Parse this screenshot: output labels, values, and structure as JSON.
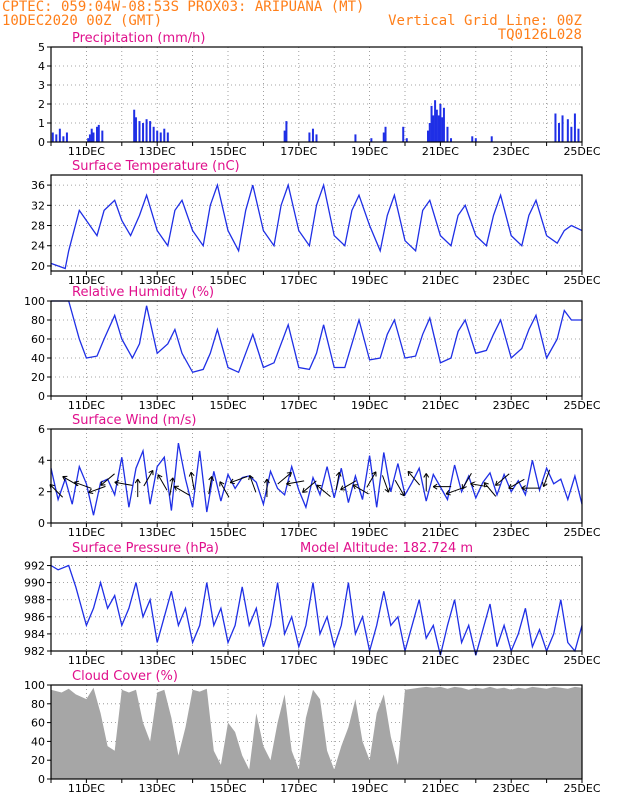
{
  "header": {
    "line1": "CPTEC:   059:04W-08:53S   PROX03: ARIPUANA (MT)",
    "line2": "10DEC2020 00Z (GMT)",
    "right1": "Vertical Grid Line: 00Z",
    "right2": "TQ0126L028"
  },
  "colors": {
    "header": "#ff7f1a",
    "title": "#e0108c",
    "line": "#1f2fe6",
    "bars": "#1f2fe6",
    "cloud": "#a6a6a6",
    "arrow": "#000000"
  },
  "chart_data": [
    {
      "type": "bar",
      "title": "Precipitation (mm/h)",
      "xlabel": "",
      "ylabel": "",
      "x_ticks": [
        "11DEC",
        "13DEC",
        "15DEC",
        "17DEC",
        "19DEC",
        "21DEC",
        "23DEC",
        "25DEC"
      ],
      "y_ticks": [
        "0",
        "1",
        "2",
        "3",
        "4",
        "5"
      ],
      "ylim": [
        0,
        5
      ],
      "x_range_days": [
        10,
        25
      ],
      "x": [
        10.05,
        10.15,
        10.25,
        10.35,
        10.45,
        11.05,
        11.1,
        11.15,
        11.2,
        11.3,
        11.35,
        11.45,
        12.35,
        12.4,
        12.5,
        12.6,
        12.7,
        12.8,
        12.9,
        13.0,
        13.1,
        13.2,
        13.3,
        16.6,
        16.65,
        17.3,
        17.4,
        17.5,
        18.6,
        19.05,
        19.4,
        19.45,
        19.95,
        20.05,
        20.65,
        20.7,
        20.75,
        20.8,
        20.85,
        20.9,
        20.95,
        21.0,
        21.05,
        21.1,
        21.2,
        21.3,
        21.9,
        22.0,
        22.45,
        24.25,
        24.35,
        24.45,
        24.6,
        24.7,
        24.8,
        24.9
      ],
      "values": [
        0.5,
        0.4,
        0.7,
        0.3,
        0.5,
        0.2,
        0.4,
        0.7,
        0.5,
        0.8,
        0.9,
        0.6,
        1.7,
        1.3,
        1.1,
        1.0,
        1.2,
        1.1,
        0.8,
        0.6,
        0.5,
        0.7,
        0.5,
        0.6,
        1.1,
        0.5,
        0.7,
        0.4,
        0.4,
        0.2,
        0.5,
        0.8,
        0.8,
        0.2,
        0.6,
        1.0,
        1.9,
        1.4,
        2.2,
        1.7,
        1.4,
        2.0,
        1.3,
        1.8,
        0.8,
        0.2,
        0.3,
        0.2,
        0.3,
        1.5,
        1.0,
        1.4,
        1.2,
        0.8,
        1.5,
        0.7
      ]
    },
    {
      "type": "line",
      "title": "Surface Temperature (nC)",
      "xlabel": "",
      "ylabel": "",
      "x_ticks": [
        "11DEC",
        "13DEC",
        "15DEC",
        "17DEC",
        "19DEC",
        "21DEC",
        "23DEC",
        "25DEC"
      ],
      "y_ticks": [
        "20",
        "24",
        "28",
        "32",
        "36"
      ],
      "ylim": [
        19,
        38
      ],
      "x_range_days": [
        10,
        25
      ],
      "x": [
        10.0,
        10.4,
        10.5,
        10.8,
        11.0,
        11.3,
        11.5,
        11.8,
        12.0,
        12.25,
        12.5,
        12.7,
        13.0,
        13.3,
        13.5,
        13.7,
        14.0,
        14.3,
        14.5,
        14.7,
        15.0,
        15.3,
        15.5,
        15.7,
        16.0,
        16.3,
        16.5,
        16.7,
        17.0,
        17.3,
        17.5,
        17.7,
        18.0,
        18.3,
        18.5,
        18.7,
        19.0,
        19.3,
        19.5,
        19.7,
        20.0,
        20.3,
        20.5,
        20.7,
        21.0,
        21.3,
        21.5,
        21.7,
        22.0,
        22.3,
        22.5,
        22.7,
        23.0,
        23.3,
        23.5,
        23.7,
        24.0,
        24.3,
        24.5,
        24.7,
        25.0
      ],
      "values": [
        20.5,
        19.5,
        23,
        31,
        29,
        26,
        31,
        33,
        29,
        26,
        30,
        34,
        27,
        24,
        31,
        33,
        27,
        24,
        32,
        36,
        27,
        23,
        31,
        36,
        27,
        24,
        32,
        36,
        27,
        24,
        32,
        36,
        26,
        24,
        31,
        34,
        28,
        23,
        30,
        34,
        25,
        23,
        31,
        33,
        26,
        24,
        30,
        32,
        26,
        24,
        30,
        34,
        26,
        24,
        30,
        33,
        26,
        24.5,
        27,
        28,
        27
      ]
    },
    {
      "type": "line",
      "title": "Relative Humidity (%)",
      "xlabel": "",
      "ylabel": "",
      "x_ticks": [
        "11DEC",
        "13DEC",
        "15DEC",
        "17DEC",
        "19DEC",
        "21DEC",
        "23DEC",
        "25DEC"
      ],
      "y_ticks": [
        "0",
        "20",
        "40",
        "60",
        "80",
        "100"
      ],
      "ylim": [
        0,
        100
      ],
      "x_range_days": [
        10,
        25
      ],
      "x": [
        10.0,
        10.5,
        10.8,
        11.0,
        11.3,
        11.5,
        11.8,
        12.0,
        12.3,
        12.5,
        12.7,
        13.0,
        13.3,
        13.5,
        13.7,
        14.0,
        14.3,
        14.5,
        14.7,
        15.0,
        15.3,
        15.5,
        15.7,
        16.0,
        16.3,
        16.5,
        16.7,
        17.0,
        17.3,
        17.5,
        17.7,
        18.0,
        18.3,
        18.5,
        18.7,
        19.0,
        19.3,
        19.5,
        19.7,
        20.0,
        20.3,
        20.5,
        20.7,
        21.0,
        21.3,
        21.5,
        21.7,
        22.0,
        22.3,
        22.5,
        22.7,
        23.0,
        23.3,
        23.5,
        23.7,
        24.0,
        24.3,
        24.5,
        24.7,
        25.0
      ],
      "values": [
        100,
        100,
        60,
        40,
        42,
        60,
        85,
        60,
        40,
        55,
        95,
        45,
        55,
        70,
        45,
        25,
        28,
        45,
        70,
        30,
        25,
        45,
        65,
        30,
        35,
        55,
        75,
        30,
        28,
        45,
        75,
        30,
        30,
        55,
        80,
        38,
        40,
        65,
        80,
        40,
        42,
        65,
        82,
        35,
        40,
        68,
        80,
        45,
        48,
        65,
        80,
        40,
        50,
        70,
        85,
        40,
        60,
        90,
        80,
        80
      ]
    },
    {
      "type": "line",
      "title": "Surface Wind (m/s)",
      "xlabel": "",
      "ylabel": "",
      "x_ticks": [
        "11DEC",
        "13DEC",
        "15DEC",
        "17DEC",
        "19DEC",
        "21DEC",
        "23DEC",
        "25DEC"
      ],
      "y_ticks": [
        "0",
        "2",
        "4",
        "6"
      ],
      "ylim": [
        0,
        6
      ],
      "x_range_days": [
        10,
        25
      ],
      "x": [
        10.0,
        10.2,
        10.4,
        10.6,
        10.8,
        11.0,
        11.2,
        11.4,
        11.6,
        11.8,
        12.0,
        12.2,
        12.4,
        12.6,
        12.8,
        13.0,
        13.2,
        13.4,
        13.6,
        13.8,
        14.0,
        14.2,
        14.4,
        14.6,
        14.8,
        15.0,
        15.2,
        15.4,
        15.6,
        15.8,
        16.0,
        16.2,
        16.4,
        16.6,
        16.8,
        17.0,
        17.2,
        17.4,
        17.6,
        17.8,
        18.0,
        18.2,
        18.4,
        18.6,
        18.8,
        19.0,
        19.2,
        19.4,
        19.6,
        19.8,
        20.0,
        20.2,
        20.4,
        20.6,
        20.8,
        21.0,
        21.2,
        21.4,
        21.6,
        21.8,
        22.0,
        22.2,
        22.4,
        22.6,
        22.8,
        23.0,
        23.2,
        23.4,
        23.6,
        23.8,
        24.0,
        24.2,
        24.4,
        24.6,
        24.8,
        25.0
      ],
      "values": [
        3.5,
        1.5,
        2.8,
        1.2,
        3.6,
        2.5,
        0.5,
        2.6,
        2.8,
        1.8,
        4.2,
        1.0,
        3.5,
        4.6,
        1.2,
        3.6,
        4.2,
        0.8,
        5.1,
        2.8,
        1.0,
        4.6,
        0.7,
        3.3,
        1.4,
        3.1,
        2.2,
        2.9,
        3.0,
        2.6,
        1.2,
        3.3,
        2.2,
        1.8,
        3.6,
        2.1,
        1.0,
        2.9,
        1.8,
        3.6,
        1.6,
        3.5,
        1.3,
        3.0,
        1.5,
        4.3,
        1.0,
        4.5,
        2.0,
        3.8,
        1.8,
        2.6,
        3.5,
        1.4,
        3.1,
        2.3,
        1.5,
        3.7,
        2.0,
        3.0,
        1.6,
        2.6,
        3.2,
        1.8,
        3.1,
        2.0,
        2.7,
        1.8,
        4.0,
        2.1,
        3.5,
        2.5,
        2.8,
        1.5,
        3.0,
        1.2
      ],
      "arrows_days": [
        10.15,
        10.55,
        10.9,
        11.3,
        11.6,
        12.05,
        12.45,
        12.75,
        13.15,
        13.4,
        13.7,
        14.0,
        14.5,
        14.9,
        15.3,
        15.7,
        16.1,
        16.6,
        16.9,
        17.3,
        17.7,
        18.1,
        18.4,
        18.75,
        19.05,
        19.45,
        19.85,
        20.25,
        20.6,
        21.05,
        21.4,
        21.75,
        22.1,
        22.4,
        22.75,
        23.15,
        23.55,
        24.0
      ],
      "arrow_angles_deg": [
        135,
        150,
        160,
        200,
        220,
        170,
        90,
        60,
        120,
        80,
        150,
        100,
        80,
        120,
        200,
        110,
        90,
        40,
        190,
        220,
        140,
        80,
        210,
        150,
        60,
        290,
        300,
        130,
        90,
        180,
        200,
        240,
        170,
        130,
        220,
        210,
        180,
        250
      ]
    },
    {
      "type": "line",
      "title": "Surface Pressure (hPa)",
      "subtitle": "Model Altitude: 182.724 m",
      "xlabel": "",
      "ylabel": "",
      "x_ticks": [
        "11DEC",
        "13DEC",
        "15DEC",
        "17DEC",
        "19DEC",
        "21DEC",
        "23DEC",
        "25DEC"
      ],
      "y_ticks": [
        "982",
        "984",
        "986",
        "988",
        "990",
        "992"
      ],
      "ylim": [
        982,
        993
      ],
      "x_range_days": [
        10,
        25
      ],
      "x": [
        10.0,
        10.2,
        10.5,
        10.7,
        11.0,
        11.2,
        11.4,
        11.6,
        11.8,
        12.0,
        12.2,
        12.4,
        12.6,
        12.8,
        13.0,
        13.2,
        13.4,
        13.6,
        13.8,
        14.0,
        14.2,
        14.4,
        14.6,
        14.8,
        15.0,
        15.2,
        15.4,
        15.6,
        15.8,
        16.0,
        16.2,
        16.4,
        16.6,
        16.8,
        17.0,
        17.2,
        17.4,
        17.6,
        17.8,
        18.0,
        18.2,
        18.4,
        18.6,
        18.8,
        19.0,
        19.2,
        19.4,
        19.6,
        19.8,
        20.0,
        20.2,
        20.4,
        20.6,
        20.8,
        21.0,
        21.2,
        21.4,
        21.6,
        21.8,
        22.0,
        22.2,
        22.4,
        22.6,
        22.8,
        23.0,
        23.2,
        23.4,
        23.6,
        23.8,
        24.0,
        24.2,
        24.4,
        24.6,
        24.8,
        25.0
      ],
      "values": [
        992,
        991.5,
        992,
        989.5,
        985,
        987,
        990,
        987,
        988.5,
        985,
        987,
        990,
        986,
        988,
        983,
        986,
        989,
        985,
        987,
        983,
        985,
        990,
        985,
        987,
        983,
        985,
        989.5,
        985,
        987,
        982.5,
        985,
        990,
        984,
        986,
        982.5,
        985,
        990,
        984,
        986,
        982.5,
        985,
        990,
        984,
        986,
        982,
        985,
        989,
        985,
        986,
        982,
        985,
        988,
        983.5,
        985,
        981.5,
        985,
        988,
        983,
        985,
        981.5,
        984.5,
        987.5,
        982.5,
        985,
        982,
        984,
        987,
        982.5,
        984.5,
        982,
        984,
        988,
        983,
        982,
        985
      ]
    },
    {
      "type": "area",
      "title": "Cloud Cover (%)",
      "xlabel": "",
      "ylabel": "",
      "x_ticks": [
        "11DEC",
        "13DEC",
        "15DEC",
        "17DEC",
        "19DEC",
        "21DEC",
        "23DEC",
        "25DEC"
      ],
      "y_ticks": [
        "0",
        "20",
        "40",
        "60",
        "80",
        "100"
      ],
      "ylim": [
        0,
        100
      ],
      "x_range_days": [
        10,
        25
      ],
      "x": [
        10.0,
        10.3,
        10.5,
        10.7,
        11.0,
        11.2,
        11.4,
        11.6,
        11.8,
        12.0,
        12.2,
        12.4,
        12.6,
        12.8,
        13.0,
        13.2,
        13.4,
        13.6,
        13.8,
        14.0,
        14.2,
        14.4,
        14.6,
        14.8,
        15.0,
        15.2,
        15.4,
        15.6,
        15.8,
        16.0,
        16.2,
        16.4,
        16.6,
        16.8,
        17.0,
        17.2,
        17.4,
        17.6,
        17.8,
        18.0,
        18.2,
        18.4,
        18.6,
        18.8,
        19.0,
        19.2,
        19.4,
        19.6,
        19.8,
        20.0,
        20.2,
        20.4,
        20.6,
        20.8,
        21.0,
        21.2,
        21.4,
        21.6,
        21.8,
        22.0,
        22.2,
        22.4,
        22.6,
        22.8,
        23.0,
        23.2,
        23.4,
        23.6,
        23.8,
        24.0,
        24.2,
        24.4,
        24.6,
        24.8,
        25.0
      ],
      "values": [
        95,
        92,
        96,
        90,
        85,
        97,
        70,
        35,
        30,
        95,
        92,
        95,
        60,
        40,
        92,
        95,
        65,
        25,
        55,
        95,
        93,
        96,
        30,
        15,
        60,
        50,
        25,
        10,
        70,
        35,
        20,
        60,
        90,
        30,
        10,
        65,
        95,
        85,
        30,
        10,
        35,
        55,
        85,
        40,
        20,
        70,
        90,
        45,
        15,
        95,
        96,
        97,
        98,
        97,
        98,
        96,
        98,
        97,
        95,
        97,
        96,
        98,
        96,
        97,
        95,
        97,
        96,
        98,
        97,
        96,
        98,
        97,
        96,
        98,
        97
      ]
    }
  ]
}
